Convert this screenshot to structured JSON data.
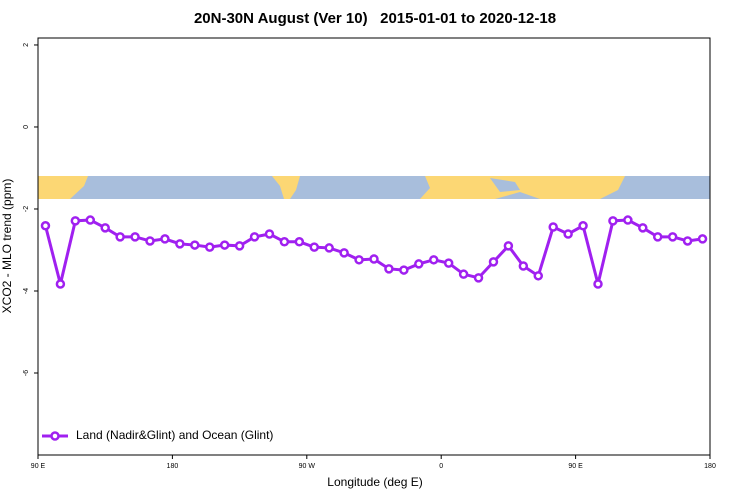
{
  "chart_data": {
    "type": "line",
    "title": "20N-30N August (Ver 10)   2015-01-01 to 2020-12-18",
    "xlabel": "Longitude (deg E)",
    "ylabel": "XCO2 - MLO trend (ppm)",
    "x": [
      95,
      105,
      115,
      125,
      135,
      145,
      155,
      165,
      175,
      185,
      195,
      205,
      215,
      225,
      235,
      245,
      255,
      265,
      275,
      285,
      295,
      305,
      315,
      325,
      335,
      345,
      355,
      365,
      375,
      385,
      395,
      405,
      415,
      425,
      435,
      445,
      455,
      465,
      475,
      485,
      495,
      505,
      515,
      525,
      535
    ],
    "series": [
      {
        "name": "Land (Nadir&Glint) and Ocean (Glint)",
        "color": "#a020f0",
        "values": [
          -2.41,
          -3.83,
          -2.29,
          -2.27,
          -2.46,
          -2.68,
          -2.68,
          -2.78,
          -2.73,
          -2.85,
          -2.88,
          -2.93,
          -2.88,
          -2.9,
          -2.68,
          -2.61,
          -2.8,
          -2.8,
          -2.93,
          -2.95,
          -3.07,
          -3.24,
          -3.22,
          -3.46,
          -3.49,
          -3.34,
          -3.24,
          -3.32,
          -3.59,
          -3.68,
          -3.29,
          -2.9,
          -3.39,
          -3.63,
          -2.44,
          -2.61,
          -2.41,
          -3.83,
          -2.29,
          -2.27,
          -2.46,
          -2.68,
          -2.68,
          -2.78,
          -2.73
        ]
      }
    ],
    "xlim": [
      90,
      540
    ],
    "xticks": [
      {
        "value": 90,
        "label": "90 E"
      },
      180,
      {
        "value": 270,
        "label": "90 W"
      },
      {
        "value": 360,
        "label": "0"
      },
      {
        "value": 450,
        "label": "90 E"
      },
      {
        "value": 540,
        "label": "180"
      }
    ],
    "ylim": [
      -8,
      2.17
    ],
    "yticks": [
      2,
      0,
      -2,
      -4,
      -6
    ],
    "legend": "bottom-left"
  }
}
